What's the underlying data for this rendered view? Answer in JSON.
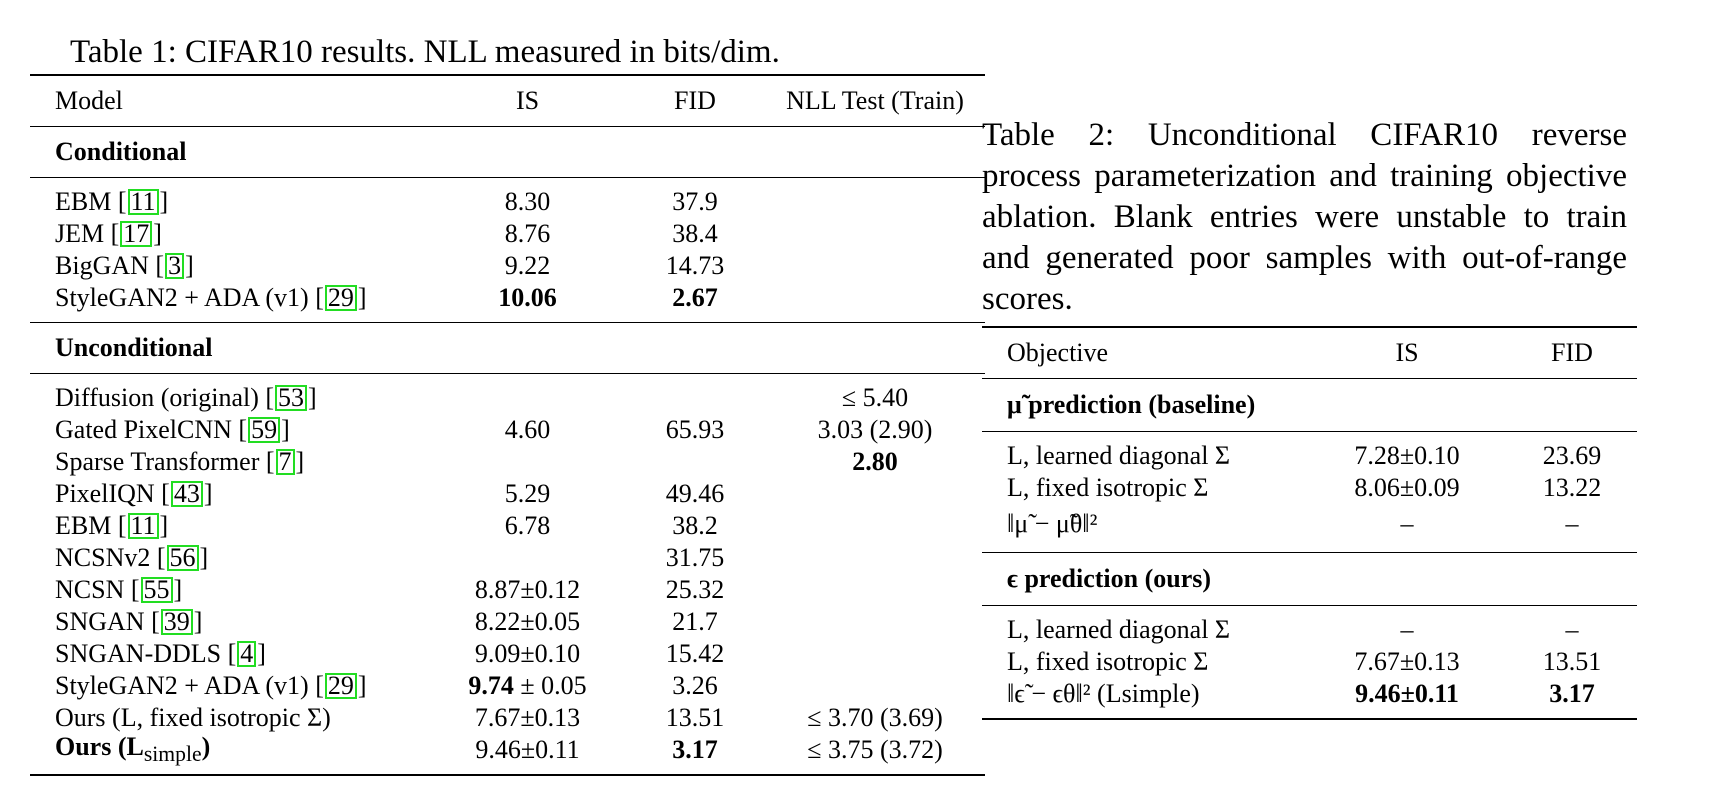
{
  "table1": {
    "caption": "Table 1: CIFAR10 results. NLL measured in bits/dim.",
    "headers": [
      "Model",
      "IS",
      "FID",
      "NLL Test (Train)"
    ],
    "sections": [
      {
        "title": "Conditional",
        "rows": [
          {
            "model": "EBM [",
            "cite": "11",
            "tail": "]",
            "is": "8.30",
            "fid": "37.9",
            "nll": ""
          },
          {
            "model": "JEM [",
            "cite": "17",
            "tail": "]",
            "is": "8.76",
            "fid": "38.4",
            "nll": ""
          },
          {
            "model": "BigGAN [",
            "cite": "3",
            "tail": "]",
            "is": "9.22",
            "fid": "14.73",
            "nll": ""
          },
          {
            "model": "StyleGAN2 + ADA (v1) [",
            "cite": "29",
            "tail": "]",
            "is": "10.06",
            "fid": "2.67",
            "nll": "",
            "bold_is": true,
            "bold_fid": true
          }
        ]
      },
      {
        "title": "Unconditional",
        "rows": [
          {
            "model": "Diffusion (original) [",
            "cite": "53",
            "tail": "]",
            "is": "",
            "fid": "",
            "nll": "≤ 5.40"
          },
          {
            "model": "Gated PixelCNN [",
            "cite": "59",
            "tail": "]",
            "is": "4.60",
            "fid": "65.93",
            "nll": "3.03 (2.90)"
          },
          {
            "model": "Sparse Transformer [",
            "cite": "7",
            "tail": "]",
            "is": "",
            "fid": "",
            "nll": "2.80",
            "bold_nll": true
          },
          {
            "model": "PixelIQN [",
            "cite": "43",
            "tail": "]",
            "is": "5.29",
            "fid": "49.46",
            "nll": ""
          },
          {
            "model": "EBM [",
            "cite": "11",
            "tail": "]",
            "is": "6.78",
            "fid": "38.2",
            "nll": ""
          },
          {
            "model": "NCSNv2 [",
            "cite": "56",
            "tail": "]",
            "is": "",
            "fid": "31.75",
            "nll": ""
          },
          {
            "model": "NCSN [",
            "cite": "55",
            "tail": "]",
            "is": "8.87±0.12",
            "fid": "25.32",
            "nll": ""
          },
          {
            "model": "SNGAN [",
            "cite": "39",
            "tail": "]",
            "is": "8.22±0.05",
            "fid": "21.7",
            "nll": ""
          },
          {
            "model": "SNGAN-DDLS [",
            "cite": "4",
            "tail": "]",
            "is": "9.09±0.10",
            "fid": "15.42",
            "nll": ""
          },
          {
            "model": "StyleGAN2 + ADA (v1) [",
            "cite": "29",
            "tail": "]",
            "is": "9.74 ± 0.05",
            "fid": "3.26",
            "nll": "",
            "bold_is_prefix": "9.74",
            "is_rest": " ± 0.05"
          },
          {
            "model": "Ours (L, fixed isotropic Σ)",
            "cite": "",
            "tail": "",
            "is": "7.67±0.13",
            "fid": "13.51",
            "nll": "≤ 3.70 (3.69)"
          },
          {
            "model": "Ours (L",
            "model_sub": "simple",
            "model_end": ")",
            "cite": "",
            "tail": "",
            "is": "9.46±0.11",
            "fid": "3.17",
            "nll": "≤ 3.75 (3.72)",
            "bold_model": true,
            "bold_fid": true
          }
        ]
      }
    ]
  },
  "table2": {
    "caption": "Table 2: Unconditional CIFAR10 reverse process parameterization and training objective ablation. Blank entries were unstable to train and generated poor samples with out-of-range scores.",
    "headers": [
      "Objective",
      "IS",
      "FID"
    ],
    "sections": [
      {
        "title": "μ̃ prediction (baseline)",
        "rows": [
          {
            "obj": "L, learned diagonal Σ",
            "is": "7.28±0.10",
            "fid": "23.69"
          },
          {
            "obj": "L, fixed isotropic Σ",
            "is": "8.06±0.09",
            "fid": "13.22"
          },
          {
            "obj": "‖μ̃ − μ̃θ‖²",
            "is": "–",
            "fid": "–"
          }
        ]
      },
      {
        "title": "ϵ prediction (ours)",
        "rows": [
          {
            "obj": "L, learned diagonal Σ",
            "is": "–",
            "fid": "–"
          },
          {
            "obj": "L, fixed isotropic Σ",
            "is": "7.67±0.13",
            "fid": "13.51"
          },
          {
            "obj": "‖ϵ̃ − ϵθ‖² (Lsimple)",
            "is": "9.46±0.11",
            "fid": "3.17",
            "bold": true
          }
        ]
      }
    ]
  }
}
